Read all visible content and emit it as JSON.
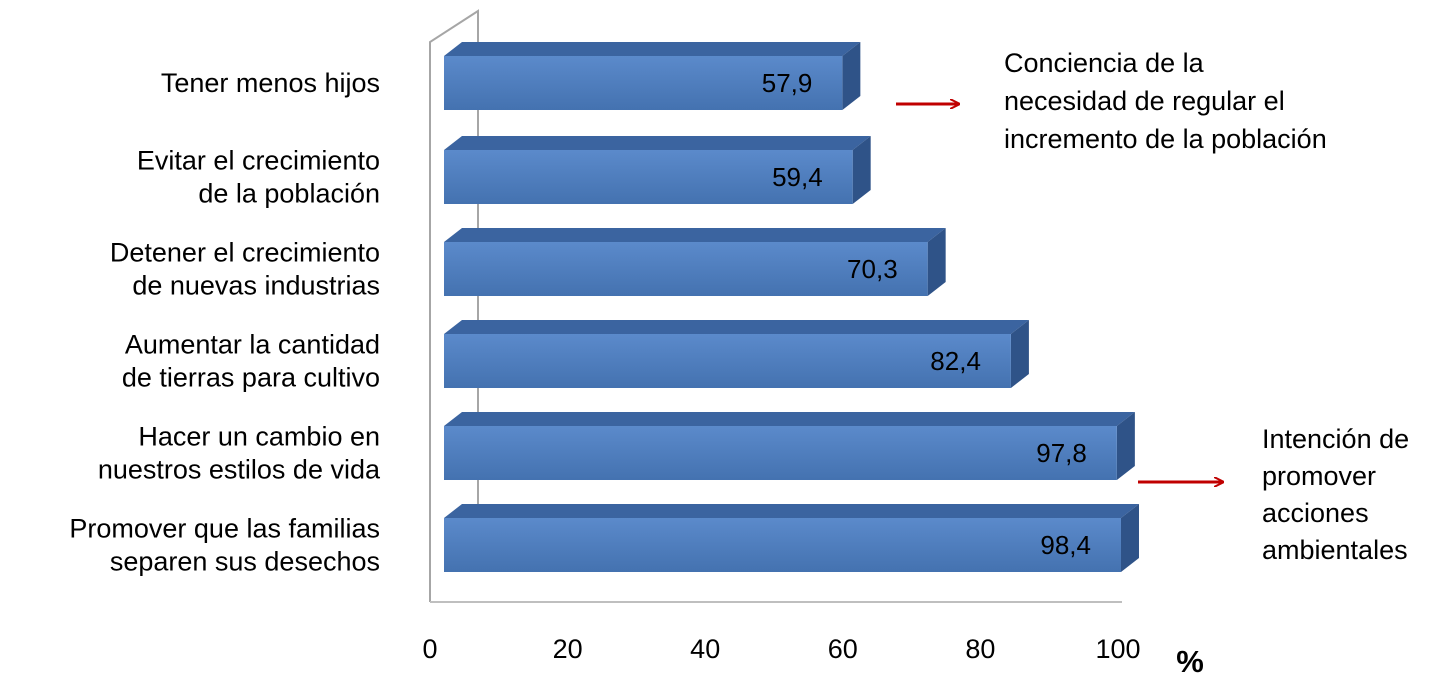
{
  "chart_data": {
    "type": "bar",
    "orientation": "horizontal",
    "style": "3d",
    "categories": [
      [
        "Tener menos hijos"
      ],
      [
        "Evitar  el crecimiento",
        "de la población"
      ],
      [
        "Detener el crecimiento",
        "de nuevas industrias"
      ],
      [
        "Aumentar la cantidad",
        "de tierras para cultivo"
      ],
      [
        "Hacer un cambio en",
        "nuestros estilos de vida"
      ],
      [
        "Promover que las familias",
        "separen sus desechos"
      ]
    ],
    "values": [
      57.9,
      59.4,
      70.3,
      82.4,
      97.8,
      98.4
    ],
    "value_labels": [
      "57,9",
      "59,4",
      "70,3",
      "82,4",
      "97,8",
      "98,4"
    ],
    "xlim": [
      0,
      100
    ],
    "xticks": [
      0,
      20,
      40,
      60,
      80,
      100
    ],
    "xtick_labels": [
      "0",
      "20",
      "40",
      "60",
      "80",
      "100"
    ],
    "x_unit": "%",
    "bar_color": "#4F81BD",
    "annotations": [
      {
        "lines": [
          "Conciencia de la",
          "necesidad de regular el",
          "incremento de la población"
        ],
        "points_to_bar": 0,
        "arrow_color": "#C00000"
      },
      {
        "lines": [
          "Intención de",
          "promover",
          "acciones",
          "ambientales"
        ],
        "points_to_bar": 4,
        "arrow_color": "#C00000"
      }
    ]
  }
}
